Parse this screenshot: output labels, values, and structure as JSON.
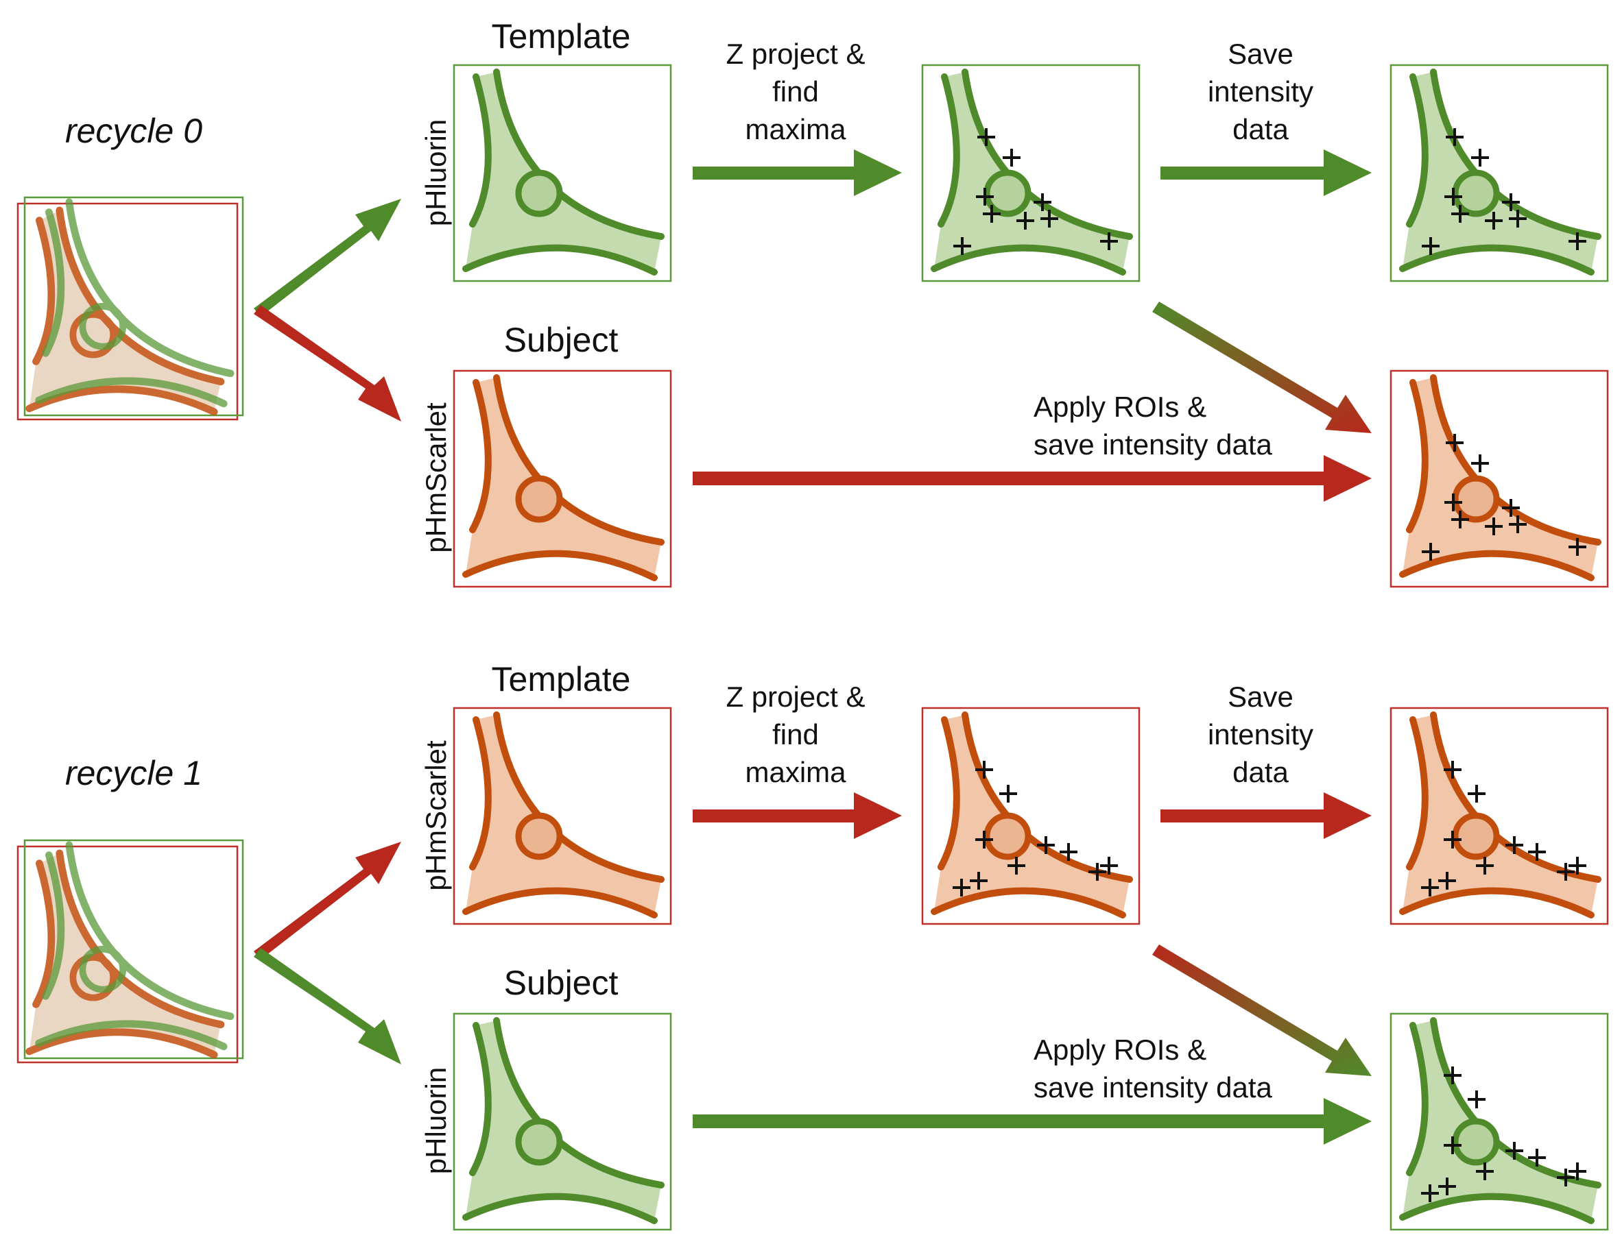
{
  "colors": {
    "green_stroke": "#4f8a2b",
    "green_fill": "#c4dbb0",
    "orange_stroke": "#c24e0e",
    "orange_fill": "#f2c6a8",
    "green_arrow": "#4f8a2b",
    "red_arrow": "#b8281c",
    "green_border": "#5a9a3a",
    "red_border": "#c0302a",
    "marker": "#111111"
  },
  "rounds": [
    {
      "label": "recycle 0",
      "template_title": "Template",
      "template_channel": "pHluorin",
      "subject_title": "Subject",
      "subject_channel": "pHmScarlet",
      "step1": [
        "Z project &",
        "find",
        "maxima"
      ],
      "step2": [
        "Save",
        "intensity",
        "data"
      ],
      "step3": [
        "Apply ROIs &",
        "save intensity data"
      ]
    },
    {
      "label": "recycle 1",
      "template_title": "Template",
      "template_channel": "pHmScarlet",
      "subject_title": "Subject",
      "subject_channel": "pHluorin",
      "step1": [
        "Z project &",
        "find",
        "maxima"
      ],
      "step2": [
        "Save",
        "intensity",
        "data"
      ],
      "step3": [
        "Apply ROIs &",
        "save intensity data"
      ]
    }
  ]
}
